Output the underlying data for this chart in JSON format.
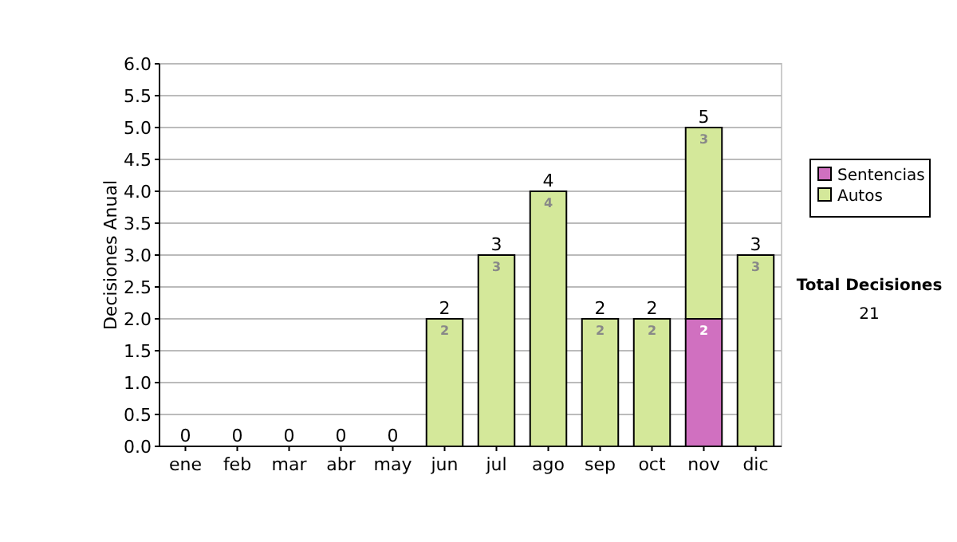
{
  "chart_data": {
    "type": "bar",
    "stacked": true,
    "ylabel": "Decisiones Anual",
    "categories": [
      "ene",
      "feb",
      "mar",
      "abr",
      "may",
      "jun",
      "jul",
      "ago",
      "sep",
      "oct",
      "nov",
      "dic"
    ],
    "series": [
      {
        "name": "Sentencias",
        "color": "#d070c0",
        "values": [
          0,
          0,
          0,
          0,
          0,
          0,
          0,
          0,
          0,
          0,
          2,
          0
        ],
        "value_labels": [
          null,
          null,
          null,
          null,
          null,
          null,
          null,
          null,
          null,
          null,
          "2",
          null
        ]
      },
      {
        "name": "Autos",
        "color": "#d4e89a",
        "values": [
          0,
          0,
          0,
          0,
          0,
          2,
          3,
          4,
          2,
          2,
          3,
          3
        ],
        "value_labels": [
          null,
          null,
          null,
          null,
          null,
          "2",
          "3",
          "4",
          "2",
          "2",
          "3",
          "3"
        ]
      }
    ],
    "totals": [
      "0",
      "0",
      "0",
      "0",
      "0",
      "2",
      "3",
      "4",
      "2",
      "2",
      "5",
      "3"
    ],
    "ylim": [
      0,
      6
    ],
    "yticks": [
      {
        "value": 0,
        "label": "0.0"
      },
      {
        "value": 0.5,
        "label": "0.5"
      },
      {
        "value": 1,
        "label": "1.0"
      },
      {
        "value": 1.5,
        "label": "1.5"
      },
      {
        "value": 2,
        "label": "2.0"
      },
      {
        "value": 2.5,
        "label": "2.5"
      },
      {
        "value": 3,
        "label": "3.0"
      },
      {
        "value": 3.5,
        "label": "3.5"
      },
      {
        "value": 4,
        "label": "4.0"
      },
      {
        "value": 4.5,
        "label": "4.5"
      },
      {
        "value": 5,
        "label": "5.0"
      },
      {
        "value": 5.5,
        "label": "5.5"
      },
      {
        "value": 6,
        "label": "6.0"
      }
    ],
    "grid": "y",
    "legend": "right",
    "annotations": [
      "Total Decisiones",
      "21"
    ]
  }
}
